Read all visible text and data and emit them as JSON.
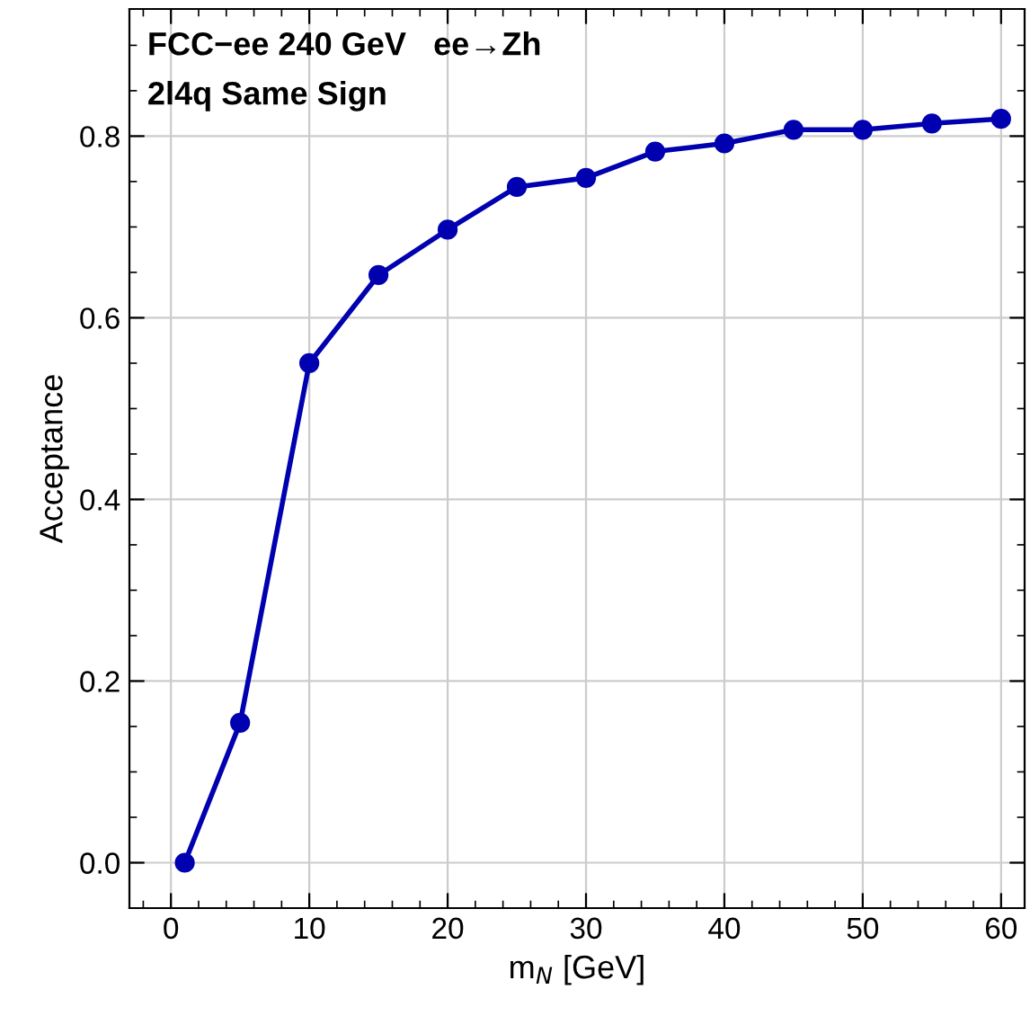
{
  "chart_data": {
    "type": "line",
    "annotations": [
      "FCC−ee 240 GeV   ee→Zh",
      "2l4q Same Sign"
    ],
    "xlabel": "m$_{N}$ [GeV]",
    "ylabel": "Acceptance",
    "x": [
      1,
      5,
      10,
      15,
      20,
      25,
      30,
      35,
      40,
      45,
      50,
      55,
      60
    ],
    "series": [
      {
        "color": "#0000b0",
        "values": [
          0.0,
          0.154,
          0.55,
          0.647,
          0.697,
          0.744,
          0.754,
          0.783,
          0.792,
          0.807,
          0.807,
          0.814,
          0.819
        ]
      }
    ],
    "xlim": [
      -3,
      61.7
    ],
    "ylim": [
      -0.05,
      0.94
    ],
    "xticks": [
      0,
      10,
      20,
      30,
      40,
      50,
      60
    ],
    "yticks": [
      {
        "value": 0,
        "label": "0.0"
      },
      0.2,
      0.4,
      0.6,
      0.8
    ],
    "grid": true,
    "marker": "circle",
    "line_style": "solid"
  }
}
